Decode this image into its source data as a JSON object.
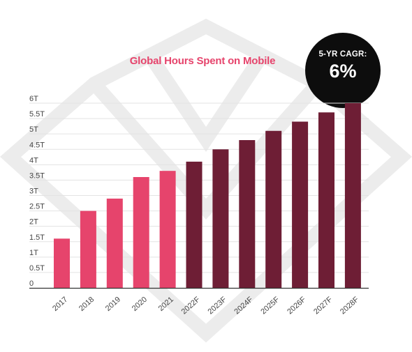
{
  "title": "Global Hours Spent on Mobile",
  "badge": {
    "label": "5-YR CAGR:",
    "value": "6%"
  },
  "colors": {
    "actual": "#e6446c",
    "forecast": "#6e1e35",
    "title": "#e6446c",
    "grid": "#e3e3e3",
    "axis": "#333333",
    "watermark": "#ececec"
  },
  "chart_data": {
    "type": "bar",
    "title": "Global Hours Spent on Mobile",
    "xlabel": "",
    "ylabel": "",
    "ylim": [
      0,
      6
    ],
    "yticks": [
      0,
      0.5,
      1,
      1.5,
      2,
      2.5,
      3,
      3.5,
      4,
      4.5,
      5,
      5.5,
      6
    ],
    "ytick_labels": [
      "0",
      "0.5T",
      "1T",
      "1.5T",
      "2T",
      "2.5T",
      "3T",
      "3.5T",
      "4T",
      "4.5T",
      "5T",
      "5.5T",
      "6T"
    ],
    "categories": [
      "2017",
      "2018",
      "2019",
      "2020",
      "2021",
      "2022F",
      "2023F",
      "2024F",
      "2025F",
      "2026F",
      "2027F",
      "2028F"
    ],
    "values": [
      1.6,
      2.5,
      2.9,
      3.6,
      3.8,
      4.1,
      4.5,
      4.8,
      5.1,
      5.4,
      5.7,
      6.0
    ],
    "forecast": [
      false,
      false,
      false,
      false,
      false,
      true,
      true,
      true,
      true,
      true,
      true,
      true
    ],
    "grid": true
  }
}
